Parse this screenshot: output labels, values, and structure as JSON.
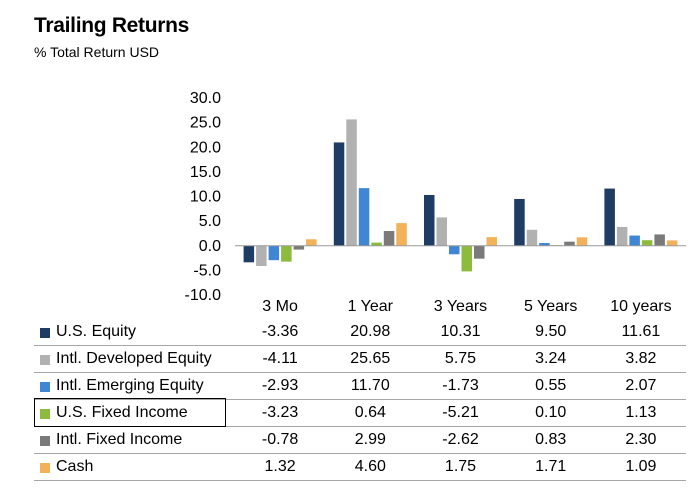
{
  "title": "Trailing Returns",
  "subtitle": "% Total Return USD",
  "chart_data": {
    "type": "bar",
    "categories": [
      "3 Mo",
      "1 Year",
      "3 Years",
      "5 Years",
      "10 years"
    ],
    "ylim": [
      -10,
      30
    ],
    "yticks": [
      "30.0",
      "25.0",
      "20.0",
      "15.0",
      "10.0",
      "5.0",
      "0.0",
      "-5.0",
      "-10.0"
    ],
    "series": [
      {
        "name": "U.S. Equity",
        "color": "#1f3d64",
        "values": [
          -3.36,
          20.98,
          10.31,
          9.5,
          11.61
        ],
        "labels": [
          "-3.36",
          "20.98",
          "10.31",
          "9.50",
          "11.61"
        ]
      },
      {
        "name": "Intl. Developed Equity",
        "color": "#b1b1b1",
        "values": [
          -4.11,
          25.65,
          5.75,
          3.24,
          3.82
        ],
        "labels": [
          "-4.11",
          "25.65",
          "5.75",
          "3.24",
          "3.82"
        ]
      },
      {
        "name": "Intl. Emerging Equity",
        "color": "#3f86d4",
        "values": [
          -2.93,
          11.7,
          -1.73,
          0.55,
          2.07
        ],
        "labels": [
          "-2.93",
          "11.70",
          "-1.73",
          "0.55",
          "2.07"
        ]
      },
      {
        "name": "U.S. Fixed Income",
        "color": "#8dbb3e",
        "values": [
          -3.23,
          0.64,
          -5.21,
          0.1,
          1.13
        ],
        "labels": [
          "-3.23",
          "0.64",
          "-5.21",
          "0.10",
          "1.13"
        ]
      },
      {
        "name": "Intl. Fixed Income",
        "color": "#7a7a7a",
        "values": [
          -0.78,
          2.99,
          -2.62,
          0.83,
          2.3
        ],
        "labels": [
          "-0.78",
          "2.99",
          "-2.62",
          "0.83",
          "2.30"
        ]
      },
      {
        "name": "Cash",
        "color": "#f3b15a",
        "values": [
          1.32,
          4.6,
          1.75,
          1.71,
          1.09
        ],
        "labels": [
          "1.32",
          "4.60",
          "1.75",
          "1.71",
          "1.09"
        ]
      }
    ],
    "highlighted_series": "U.S. Fixed Income"
  }
}
